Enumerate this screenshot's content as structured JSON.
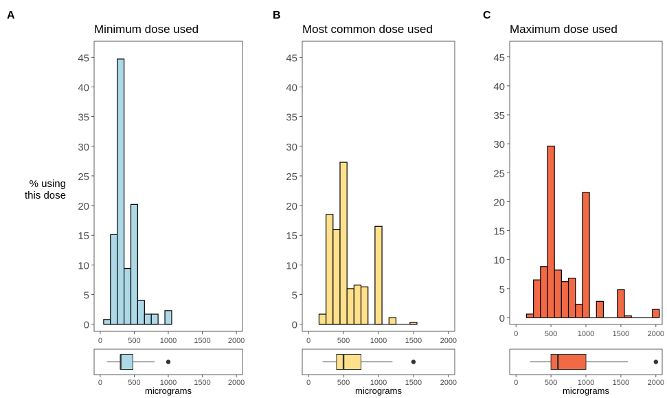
{
  "y_axis_label": [
    "% using",
    "this dose"
  ],
  "x_axis_label": "micrograms",
  "chart_data": [
    {
      "type": "histogram",
      "panel": "A",
      "title": "Minimum dose used",
      "color": "#ADD8E6",
      "xlim": [
        0,
        2000
      ],
      "ylim": [
        0,
        45
      ],
      "x_ticks": [
        0,
        500,
        1000,
        1500,
        2000
      ],
      "y_ticks": [
        0,
        5,
        10,
        15,
        20,
        25,
        30,
        35,
        40,
        45
      ],
      "bin_width": 100,
      "bins": [
        {
          "x0": 50,
          "x1": 150,
          "value": 0.8
        },
        {
          "x0": 150,
          "x1": 250,
          "value": 15.1
        },
        {
          "x0": 250,
          "x1": 350,
          "value": 44.7
        },
        {
          "x0": 350,
          "x1": 450,
          "value": 9.4
        },
        {
          "x0": 450,
          "x1": 550,
          "value": 20.2
        },
        {
          "x0": 550,
          "x1": 650,
          "value": 4.0
        },
        {
          "x0": 650,
          "x1": 750,
          "value": 1.7
        },
        {
          "x0": 750,
          "x1": 850,
          "value": 1.7
        },
        {
          "x0": 850,
          "x1": 950,
          "value": 0
        },
        {
          "x0": 950,
          "x1": 1050,
          "value": 2.3
        }
      ],
      "boxplot": {
        "lower_whisker": 100,
        "q1": 300,
        "median": 300,
        "q3": 480,
        "upper_whisker": 800,
        "outliers": [
          1000
        ]
      }
    },
    {
      "type": "histogram",
      "panel": "B",
      "title": "Most common dose used",
      "color": "#FFE08C",
      "xlim": [
        0,
        2000
      ],
      "ylim": [
        0,
        45
      ],
      "x_ticks": [
        0,
        500,
        1000,
        1500,
        2000
      ],
      "y_ticks": [
        0,
        5,
        10,
        15,
        20,
        25,
        30,
        35,
        40,
        45
      ],
      "bin_width": 100,
      "bins": [
        {
          "x0": 150,
          "x1": 250,
          "value": 1.7
        },
        {
          "x0": 250,
          "x1": 350,
          "value": 18.5
        },
        {
          "x0": 350,
          "x1": 450,
          "value": 16.0
        },
        {
          "x0": 450,
          "x1": 550,
          "value": 27.3
        },
        {
          "x0": 550,
          "x1": 650,
          "value": 6.0
        },
        {
          "x0": 650,
          "x1": 750,
          "value": 6.6
        },
        {
          "x0": 750,
          "x1": 850,
          "value": 6.3
        },
        {
          "x0": 850,
          "x1": 950,
          "value": 0
        },
        {
          "x0": 950,
          "x1": 1050,
          "value": 16.5
        },
        {
          "x0": 1050,
          "x1": 1150,
          "value": 0
        },
        {
          "x0": 1150,
          "x1": 1250,
          "value": 1.1
        },
        {
          "x0": 1250,
          "x1": 1350,
          "value": 0
        },
        {
          "x0": 1350,
          "x1": 1450,
          "value": 0
        },
        {
          "x0": 1450,
          "x1": 1550,
          "value": 0.3
        }
      ],
      "boxplot": {
        "lower_whisker": 200,
        "q1": 400,
        "median": 500,
        "q3": 750,
        "upper_whisker": 1200,
        "outliers": [
          1500
        ]
      }
    },
    {
      "type": "histogram",
      "panel": "C",
      "title": "Maximum dose used",
      "color": "#F26A45",
      "xlim": [
        0,
        2000
      ],
      "ylim": [
        0,
        45
      ],
      "x_ticks": [
        0,
        500,
        1000,
        1500,
        2000
      ],
      "y_ticks": [
        0,
        5,
        10,
        15,
        20,
        25,
        30,
        35,
        40,
        45
      ],
      "bin_width": 100,
      "bins": [
        {
          "x0": 150,
          "x1": 250,
          "value": 0.6
        },
        {
          "x0": 250,
          "x1": 350,
          "value": 6.5
        },
        {
          "x0": 350,
          "x1": 450,
          "value": 8.8
        },
        {
          "x0": 450,
          "x1": 550,
          "value": 29.6
        },
        {
          "x0": 550,
          "x1": 650,
          "value": 8.2
        },
        {
          "x0": 650,
          "x1": 750,
          "value": 6.2
        },
        {
          "x0": 750,
          "x1": 850,
          "value": 6.8
        },
        {
          "x0": 850,
          "x1": 950,
          "value": 2.3
        },
        {
          "x0": 950,
          "x1": 1050,
          "value": 21.6
        },
        {
          "x0": 1050,
          "x1": 1150,
          "value": 0
        },
        {
          "x0": 1150,
          "x1": 1250,
          "value": 2.8
        },
        {
          "x0": 1250,
          "x1": 1350,
          "value": 0
        },
        {
          "x0": 1350,
          "x1": 1450,
          "value": 0
        },
        {
          "x0": 1450,
          "x1": 1550,
          "value": 4.8
        },
        {
          "x0": 1550,
          "x1": 1650,
          "value": 0.3
        },
        {
          "x0": 1650,
          "x1": 1750,
          "value": 0
        },
        {
          "x0": 1750,
          "x1": 1850,
          "value": 0
        },
        {
          "x0": 1850,
          "x1": 1950,
          "value": 0
        },
        {
          "x0": 1950,
          "x1": 2050,
          "value": 1.4
        }
      ],
      "boxplot": {
        "lower_whisker": 200,
        "q1": 500,
        "median": 600,
        "q3": 1000,
        "upper_whisker": 1600,
        "outliers": [
          2000
        ]
      }
    }
  ]
}
